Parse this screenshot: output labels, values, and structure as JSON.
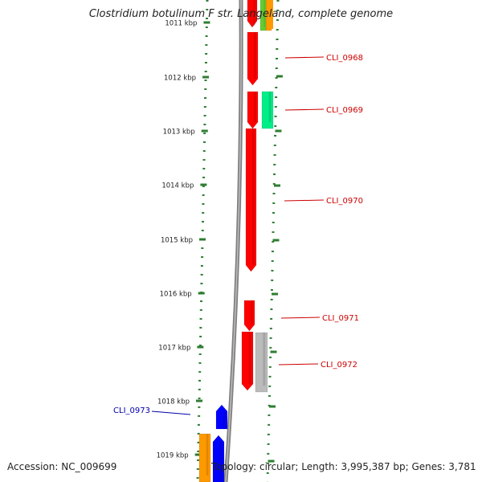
{
  "title": "Clostridium botulinum F str. Langeland, complete genome",
  "footer": {
    "accession": "Accession: NC_009699",
    "summary": "Topology: circular; Length: 3,995,387 bp; Genes: 3,781"
  },
  "colors": {
    "ruler": "#2e7d32",
    "backbone": "#808080",
    "label_red": "#cc0000",
    "label_blue": "#0000aa"
  },
  "ticks": [
    {
      "label": "1011 kbp"
    },
    {
      "label": "1012 kbp"
    },
    {
      "label": "1013 kbp"
    },
    {
      "label": "1014 kbp"
    },
    {
      "label": "1015 kbp"
    },
    {
      "label": "1016 kbp"
    },
    {
      "label": "1017 kbp"
    },
    {
      "label": "1018 kbp"
    },
    {
      "label": "1019 kbp"
    }
  ],
  "features": [
    {
      "name": "",
      "color": "#ff0000"
    },
    {
      "name": "CLI_0968",
      "color": "#ff0000"
    },
    {
      "name": "CLI_0969",
      "color": "#ff0000"
    },
    {
      "name": "",
      "color": "#00ee88"
    },
    {
      "name": "CLI_0970",
      "color": "#ff0000"
    },
    {
      "name": "CLI_0971",
      "color": "#ff0000"
    },
    {
      "name": "CLI_0972",
      "color": "#ff0000"
    },
    {
      "name": "",
      "color": "#bbbbbb"
    },
    {
      "name": "CLI_0973",
      "color": "#0000ff"
    },
    {
      "name": "",
      "color": "#0000ff"
    },
    {
      "name": "",
      "color": "#ff9900"
    },
    {
      "name": "",
      "color": "#ff9900"
    },
    {
      "name": "",
      "color": "#66cc33"
    }
  ]
}
